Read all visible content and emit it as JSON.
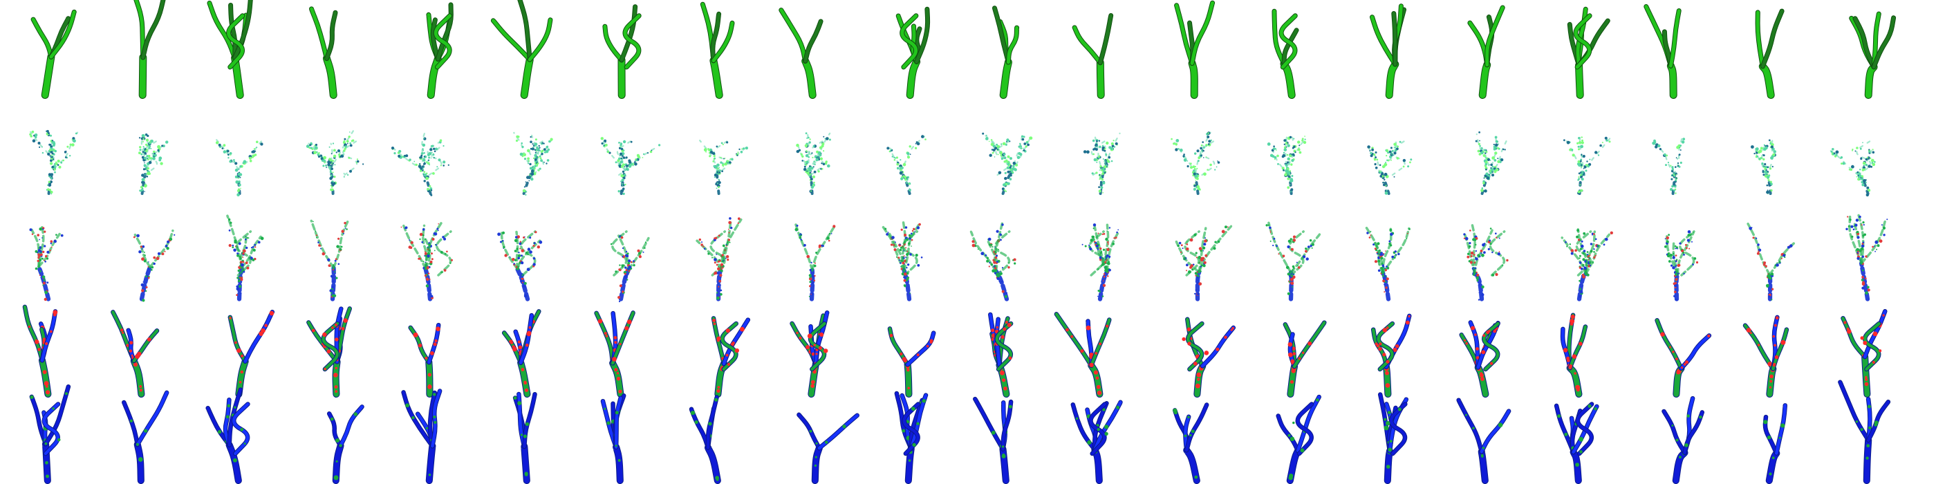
{
  "figure": {
    "rows": 5,
    "columns": 20,
    "background": "#ffffff"
  },
  "rows": [
    {
      "key": "row-1",
      "palette": [
        "#1f7a1f",
        "#22c41c",
        "#12a612"
      ],
      "fragmentation": 0.0,
      "blue_mix": 0.0
    },
    {
      "key": "row-2",
      "palette": [
        "#1d6f8f",
        "#56d6a6",
        "#7cff7c"
      ],
      "fragmentation": 0.9,
      "blue_mix": 0.35
    },
    {
      "key": "row-3",
      "palette": [
        "#1e3ad6",
        "#1cb04c",
        "#e23b3b"
      ],
      "fragmentation": 0.55,
      "blue_mix": 0.55
    },
    {
      "key": "row-4",
      "palette": [
        "#1733ff",
        "#1aa83a",
        "#ff2a2a"
      ],
      "fragmentation": 0.25,
      "blue_mix": 0.78
    },
    {
      "key": "row-5",
      "palette": [
        "#1733ff",
        "#0f1bd6",
        "#1aa83a"
      ],
      "fragmentation": 0.05,
      "blue_mix": 0.9
    }
  ]
}
